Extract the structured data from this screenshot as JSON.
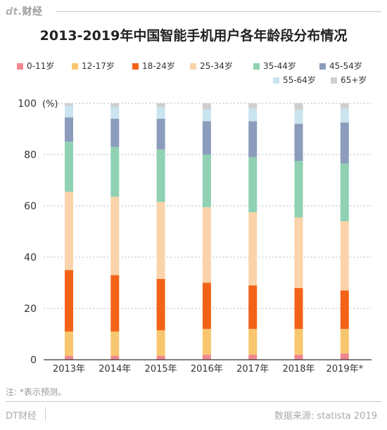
{
  "header": {
    "logo_mark": "dt.",
    "logo_text": "财经"
  },
  "chart_data": {
    "type": "bar",
    "stacked": true,
    "title": "2013-2019年中国智能手机用户各年龄段分布情况",
    "ylabel": "",
    "y_unit_label": "(%)",
    "ylim": [
      0,
      100
    ],
    "yticks": [
      0,
      20,
      40,
      60,
      80,
      100
    ],
    "grid": true,
    "legend_position": "top",
    "categories": [
      "2013年",
      "2014年",
      "2015年",
      "2016年",
      "2017年",
      "2018年",
      "2019年*"
    ],
    "series": [
      {
        "name": "0-11岁",
        "color": "#f2888f",
        "values": [
          1.5,
          1.5,
          1.5,
          2.0,
          2.0,
          2.0,
          2.5
        ]
      },
      {
        "name": "12-17岁",
        "color": "#f8c66f",
        "values": [
          9.5,
          9.5,
          10.0,
          10.0,
          10.0,
          10.0,
          9.5
        ]
      },
      {
        "name": "18-24岁",
        "color": "#f36317",
        "values": [
          24.0,
          22.0,
          20.0,
          18.0,
          17.0,
          16.0,
          15.0
        ]
      },
      {
        "name": "25-34岁",
        "color": "#fbd3aa",
        "values": [
          30.5,
          30.5,
          30.0,
          29.5,
          28.5,
          27.5,
          27.0
        ]
      },
      {
        "name": "35-44岁",
        "color": "#8fd1b2",
        "values": [
          19.5,
          19.5,
          20.5,
          20.5,
          21.5,
          22.0,
          22.5
        ]
      },
      {
        "name": "45-54岁",
        "color": "#8b9cbc",
        "values": [
          9.5,
          11.0,
          12.0,
          13.0,
          14.0,
          14.5,
          16.0
        ]
      },
      {
        "name": "55-64岁",
        "color": "#c9e3ef",
        "values": [
          4.5,
          4.5,
          4.5,
          4.5,
          5.0,
          5.5,
          5.5
        ]
      },
      {
        "name": "65+岁",
        "color": "#cfcfcf",
        "values": [
          1.0,
          1.5,
          1.5,
          2.5,
          2.0,
          2.5,
          2.0
        ]
      }
    ]
  },
  "note": "注: *表示预测。",
  "footer": {
    "brand": "DT财经",
    "source": "数据来源: statista 2019"
  }
}
